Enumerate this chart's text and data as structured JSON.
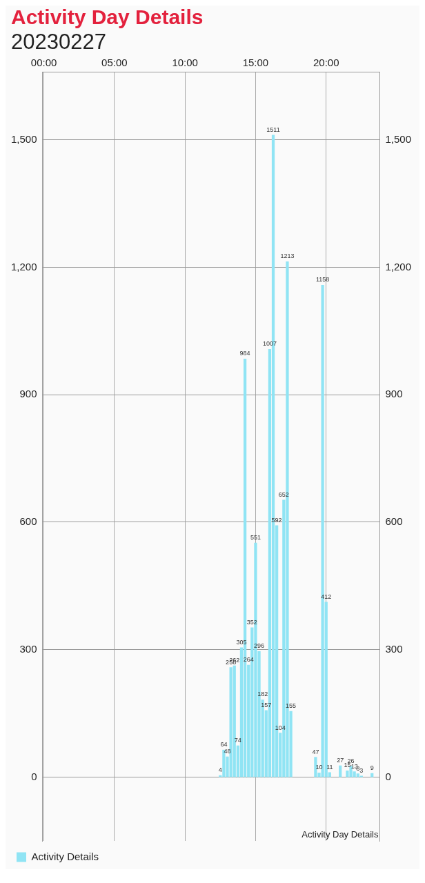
{
  "chart_data": {
    "type": "bar",
    "title": "Activity Day Details",
    "subtitle": "20230227",
    "annotations": [
      "Activity Day Details"
    ],
    "x": [
      12.5,
      12.75,
      13,
      13.25,
      13.5,
      13.75,
      14,
      14.25,
      14.5,
      14.75,
      15,
      15.25,
      15.5,
      15.75,
      16,
      16.25,
      16.5,
      16.75,
      17,
      17.25,
      17.5,
      19.25,
      19.5,
      19.75,
      20,
      20.25,
      21,
      21.5,
      21.75,
      22,
      22.25,
      22.5,
      23.25
    ],
    "series": [
      {
        "name": "Activity Details",
        "color": "#90e4f4",
        "values": [
          4,
          64,
          48,
          258,
          262,
          74,
          305,
          984,
          264,
          352,
          551,
          296,
          182,
          157,
          1007,
          1511,
          592,
          104,
          652,
          1213,
          155,
          47,
          10,
          1158,
          412,
          11,
          27,
          15,
          26,
          13,
          8,
          3,
          9
        ]
      }
    ],
    "xlim": [
      -0.1,
      23.8
    ],
    "xticks": [
      {
        "value": 0,
        "label": "00:00"
      },
      {
        "value": 5,
        "label": "05:00"
      },
      {
        "value": 10,
        "label": "10:00"
      },
      {
        "value": 15,
        "label": "15:00"
      },
      {
        "value": 20,
        "label": "20:00"
      }
    ],
    "ylim": [
      -150,
      1660
    ],
    "yticks": [
      0,
      300,
      600,
      900,
      {
        "value": 1200,
        "label": "1,200"
      },
      {
        "value": 1500,
        "label": "1,500"
      }
    ],
    "y2lim": [
      -150,
      1660
    ],
    "y2ticks": [
      0,
      300,
      600,
      900,
      {
        "value": 1200,
        "label": "1,200"
      },
      {
        "value": 1500,
        "label": "1,500"
      }
    ],
    "data_labels": true,
    "grid": true,
    "legend": "bottom left"
  }
}
